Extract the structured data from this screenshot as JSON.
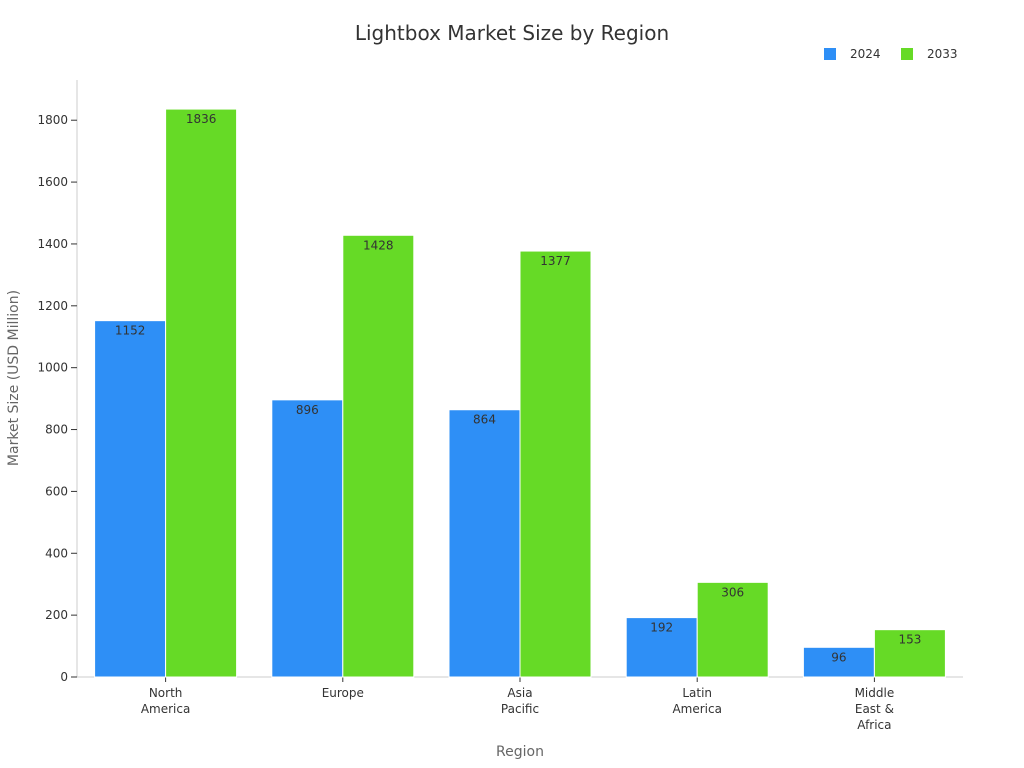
{
  "chart_data": {
    "type": "bar",
    "title": "Lightbox Market Size by Region",
    "xlabel": "Region",
    "ylabel": "Market Size (USD Million)",
    "categories": [
      [
        "North",
        "America"
      ],
      [
        "Europe"
      ],
      [
        "Asia",
        "Pacific"
      ],
      [
        "Latin",
        "America"
      ],
      [
        "Middle",
        "East &",
        "Africa"
      ]
    ],
    "series": [
      {
        "name": "2024",
        "color": "#2E8FF6",
        "values": [
          1152,
          896,
          864,
          192,
          96
        ]
      },
      {
        "name": "2033",
        "color": "#66DA26",
        "values": [
          1836,
          1428,
          1377,
          306,
          153
        ]
      }
    ],
    "yticks": [
      0,
      200,
      400,
      600,
      800,
      1000,
      1200,
      1400,
      1600,
      1800
    ],
    "ylim": [
      0,
      1930
    ],
    "grid": false,
    "legend_position": "top-right"
  }
}
